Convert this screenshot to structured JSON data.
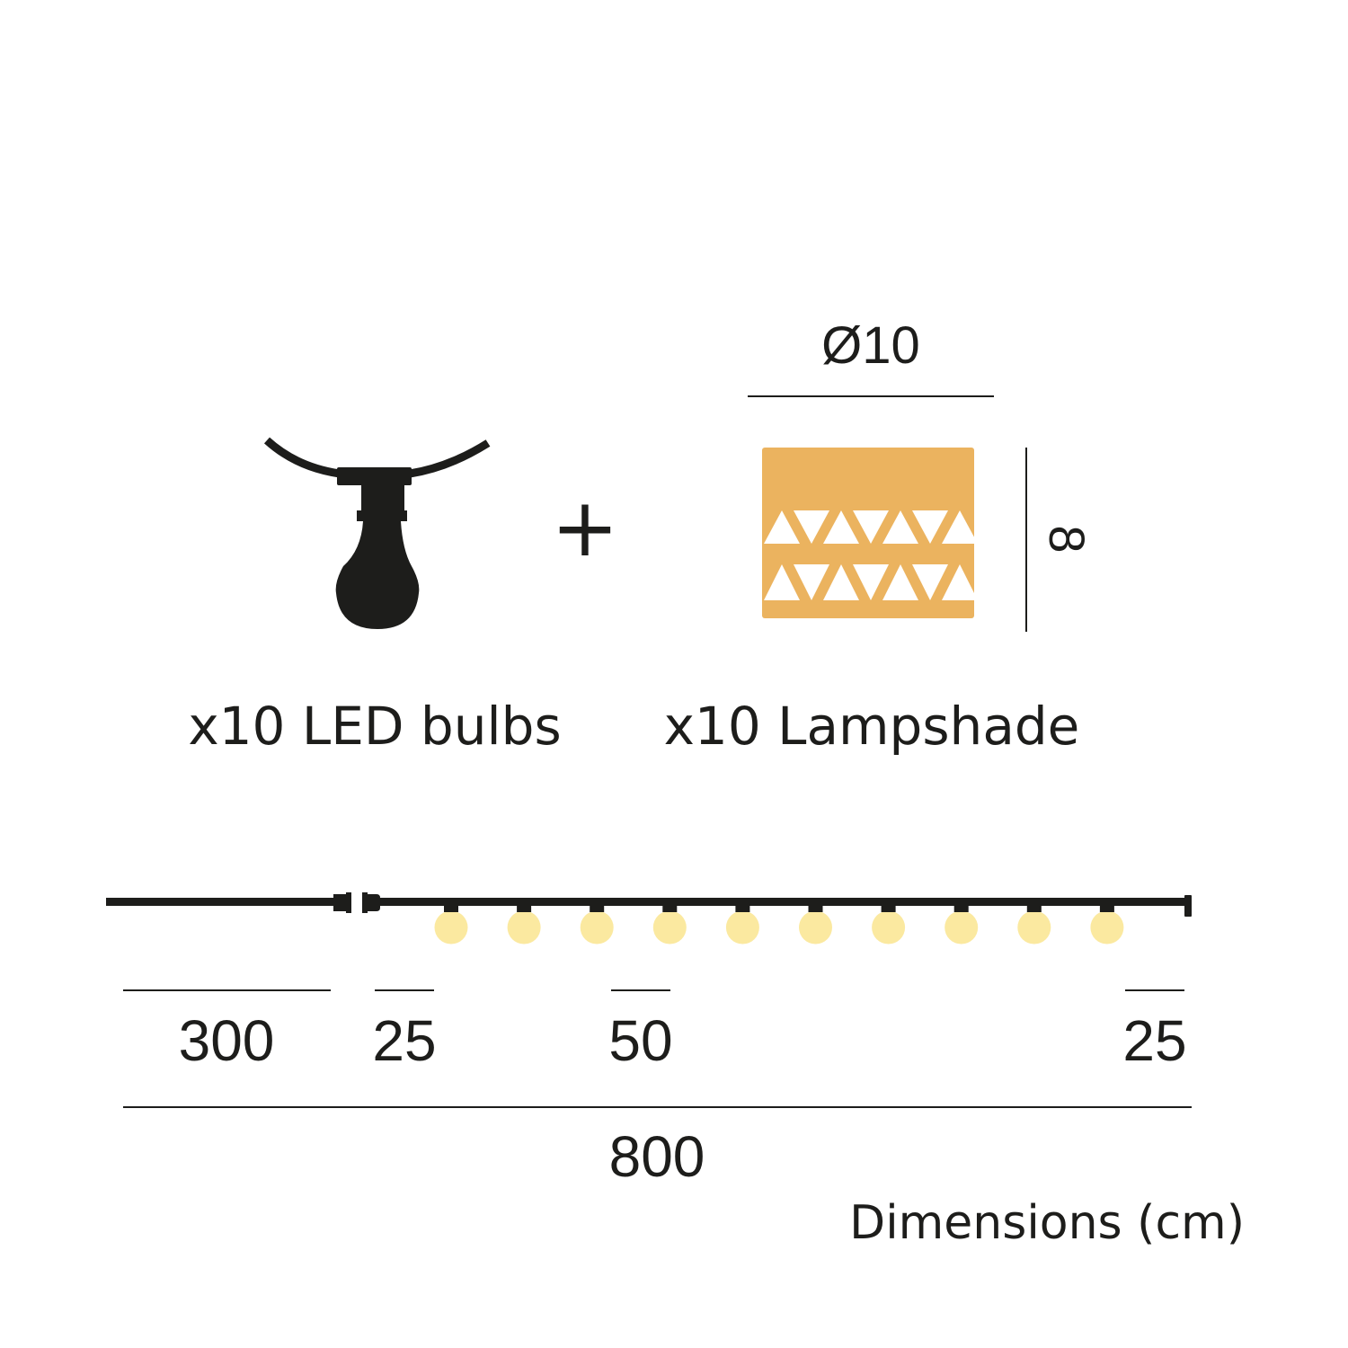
{
  "components": {
    "bulbs": {
      "label": "x10 LED bulbs",
      "icon": "bulb-socket-icon"
    },
    "plus": "+",
    "lampshade": {
      "label": "x10 Lampshade",
      "icon": "lampshade-icon",
      "diameter": "Ø10",
      "height": "8"
    }
  },
  "string": {
    "segments": [
      "300",
      "25",
      "50",
      "25"
    ],
    "total": "800",
    "bulb_count": 10
  },
  "units_note": "Dimensions (cm)",
  "colors": {
    "ink": "#1d1d1b",
    "lampshade": "#ebb35f",
    "bulb_glow": "#fbe9a0"
  }
}
